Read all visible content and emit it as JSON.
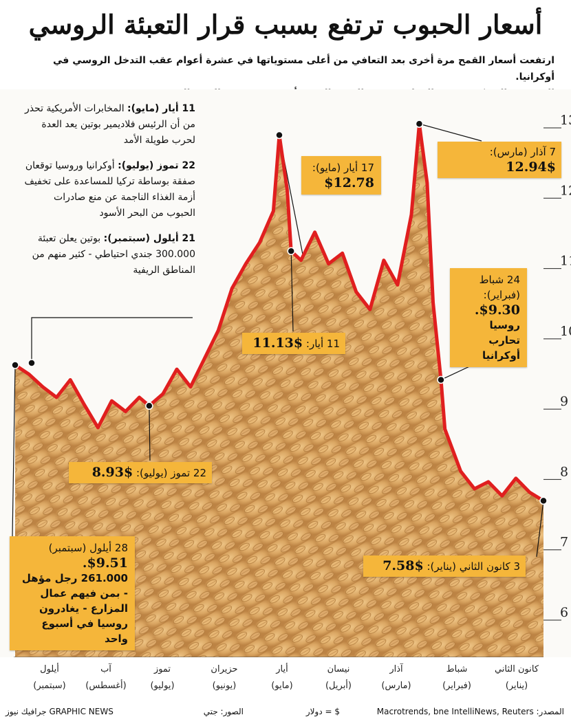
{
  "header": {
    "title": "أسعار الحبوب ترتفع بسبب قرار التعبئة الروسي",
    "subtitle_line1": "ارتفعت أسعار القمح مرة أخرى بعد التعافي من أعلى مستوياتها في عشرة أعوام عقب التدخل الروسي في أوكرانيا.",
    "subtitle_line2": "المجندون العسكريون من المزارعين  في الوقت الذي بدأ فيه موسم بذر القمح الشتوي"
  },
  "notes": [
    {
      "date": "11 أيار (مايو):",
      "text": " المخابرات الأمريكية تحذر من أن الرئيس فلاديمير بوتين يعد العدة لحرب طويلة الأمد"
    },
    {
      "date": "22 تموز (يوليو):",
      "text": " أوكرانيا وروسيا توقعان صفقة بوساطة تركيا للمساعدة على تخفيف أزمة الغذاء الناجمة عن منع صادرات الحبوب من البحر الأسود"
    },
    {
      "date": "21 أيلول (سبتمبر):",
      "text": " بوتين يعلن تعبئة 300.000 جندي احتياطي - كثير منهم من المناطق الريفية"
    }
  ],
  "callouts": {
    "may17": {
      "date": "17 أيار (مايو):",
      "price": "$12.78"
    },
    "mar7": {
      "date": "7 آذار (مارس):",
      "price": "$12.94"
    },
    "may11": {
      "date": "11 أيار:",
      "price": "$11.13"
    },
    "feb24": {
      "date": "24 شباط (فبراير):",
      "price": "$9.30.",
      "note": "روسيا تحارب أوكرانيا"
    },
    "jul22": {
      "date": "22 تموز (يوليو):",
      "price": "$8.93"
    },
    "sep28": {
      "date": "28 أيلول (سبتمبر)",
      "price": "$9.51.",
      "note": "261.000 رجل مؤهل - بمن فيهم عمال المزارع - يغادرون روسيا في أسبوع واحد"
    },
    "jan3": {
      "date": "3 كانون الثاني (يناير):",
      "price": "$7.58"
    }
  },
  "months": [
    {
      "ar": "أيلول",
      "alt": "(سبتمبر)"
    },
    {
      "ar": "آب",
      "alt": "(أغسطس)"
    },
    {
      "ar": "تموز",
      "alt": "(يوليو)"
    },
    {
      "ar": "حزيران",
      "alt": "(يونيو)"
    },
    {
      "ar": "أيار",
      "alt": "(مايو)"
    },
    {
      "ar": "نيسان",
      "alt": "(أبريل)"
    },
    {
      "ar": "آذار",
      "alt": "(مارس)"
    },
    {
      "ar": "شباط",
      "alt": "(فبراير)"
    },
    {
      "ar": "كانون الثاني",
      "alt": "(يناير)"
    }
  ],
  "footer": {
    "source": "المصدر: Macrotrends, bne IntelliNews, Reuters",
    "unit": "$ = دولار",
    "photo": "الصور: جتي",
    "credit": "GRAPHIC NEWS جرافيك نيوز"
  },
  "colors": {
    "line": "#e01f1f",
    "callout": "#f5b63a",
    "grain": "#d9a25b"
  },
  "chart_data": {
    "type": "line",
    "xlabel": "",
    "ylabel": "",
    "ylim": [
      6,
      13
    ],
    "y_ticks": [
      6,
      7,
      8,
      9,
      10,
      11,
      12,
      13
    ],
    "x_direction": "right-to-left, oldest date on the right",
    "series": [
      {
        "values": [
          9.3,
          9.1,
          9.4,
          8.9,
          10.0,
          10.9,
          11.1,
          10.7,
          11.6,
          11.9,
          12.4,
          12.1,
          11.5,
          11.4,
          11.6,
          12.0,
          12.94,
          12.3,
          11.5,
          10.6,
          9.9,
          9.4,
          9.2,
          8.7,
          8.5,
          8.4,
          8.3,
          8.0,
          7.8,
          7.7,
          7.65,
          7.7,
          7.6,
          7.75,
          7.6,
          7.58,
          7.6,
          7.7,
          7.65,
          7.6,
          7.7,
          7.75,
          7.65,
          7.58,
          7.6,
          7.65,
          7.7,
          7.68,
          7.6,
          7.58
        ],
        "dates_note": "values listed in reading order is below"
      }
    ],
    "points": [
      {
        "date": "2022-09-28",
        "value": 9.51
      },
      {
        "date": "2022-09-21",
        "value": 9.38
      },
      {
        "date": "2022-09-14",
        "value": 9.2
      },
      {
        "date": "2022-09-07",
        "value": 9.05
      },
      {
        "date": "2022-08-31",
        "value": 9.3
      },
      {
        "date": "2022-08-24",
        "value": 8.95
      },
      {
        "date": "2022-08-17",
        "value": 8.62
      },
      {
        "date": "2022-08-10",
        "value": 9.0
      },
      {
        "date": "2022-08-03",
        "value": 8.85
      },
      {
        "date": "2022-07-27",
        "value": 9.05
      },
      {
        "date": "2022-07-22",
        "value": 8.93
      },
      {
        "date": "2022-07-15",
        "value": 9.1
      },
      {
        "date": "2022-07-08",
        "value": 9.45
      },
      {
        "date": "2022-07-01",
        "value": 9.2
      },
      {
        "date": "2022-06-24",
        "value": 9.6
      },
      {
        "date": "2022-06-17",
        "value": 10.0
      },
      {
        "date": "2022-06-10",
        "value": 10.6
      },
      {
        "date": "2022-06-03",
        "value": 10.95
      },
      {
        "date": "2022-05-27",
        "value": 11.25
      },
      {
        "date": "2022-05-20",
        "value": 11.7
      },
      {
        "date": "2022-05-17",
        "value": 12.78
      },
      {
        "date": "2022-05-13",
        "value": 12.0
      },
      {
        "date": "2022-05-11",
        "value": 11.13
      },
      {
        "date": "2022-05-06",
        "value": 11.0
      },
      {
        "date": "2022-04-29",
        "value": 11.4
      },
      {
        "date": "2022-04-22",
        "value": 10.95
      },
      {
        "date": "2022-04-15",
        "value": 11.1
      },
      {
        "date": "2022-04-08",
        "value": 10.55
      },
      {
        "date": "2022-04-01",
        "value": 10.3
      },
      {
        "date": "2022-03-25",
        "value": 11.0
      },
      {
        "date": "2022-03-18",
        "value": 10.65
      },
      {
        "date": "2022-03-11",
        "value": 11.65
      },
      {
        "date": "2022-03-07",
        "value": 12.94
      },
      {
        "date": "2022-03-03",
        "value": 12.1
      },
      {
        "date": "2022-02-28",
        "value": 10.4
      },
      {
        "date": "2022-02-24",
        "value": 9.3
      },
      {
        "date": "2022-02-22",
        "value": 8.6
      },
      {
        "date": "2022-02-14",
        "value": 8.0
      },
      {
        "date": "2022-02-07",
        "value": 7.75
      },
      {
        "date": "2022-01-31",
        "value": 7.85
      },
      {
        "date": "2022-01-24",
        "value": 7.65
      },
      {
        "date": "2022-01-17",
        "value": 7.9
      },
      {
        "date": "2022-01-10",
        "value": 7.7
      },
      {
        "date": "2022-01-03",
        "value": 7.58
      }
    ]
  }
}
